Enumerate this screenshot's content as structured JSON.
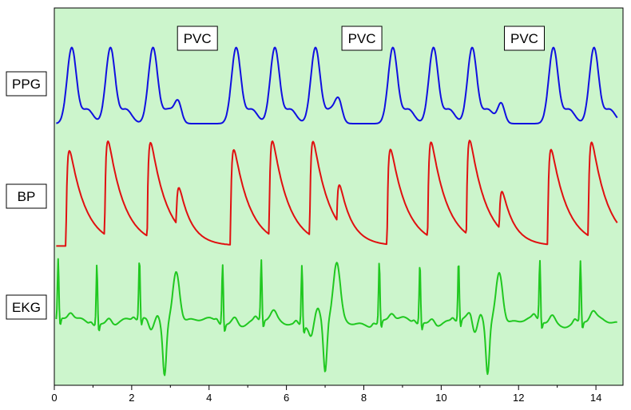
{
  "chart_data": {
    "type": "line",
    "title": "",
    "xlabel": "",
    "ylabel": "",
    "xlim": [
      0,
      14.7
    ],
    "x_ticks": [
      0,
      2,
      4,
      6,
      8,
      10,
      12,
      14
    ],
    "x_tick_labels": [
      "0",
      "2",
      "4",
      "6",
      "8",
      "10",
      "12",
      "14"
    ],
    "y_ticks_visible": false,
    "grid": false,
    "background_color": "#ccf5cc",
    "beat_times_normal": [
      0.1,
      1.1,
      2.2,
      4.35,
      5.35,
      6.4,
      8.4,
      9.45,
      10.45,
      12.55,
      13.6
    ],
    "pvc_times": [
      2.85,
      7.0,
      11.2
    ],
    "annotations": [
      {
        "text": "PVC",
        "x": 3.7
      },
      {
        "text": "PVC",
        "x": 7.95
      },
      {
        "text": "PVC",
        "x": 12.15
      }
    ],
    "series": [
      {
        "name": "PPG",
        "color": "#1010e0",
        "baseline": 0.05,
        "normal_peak": 1.0,
        "pvc_peak": 0.28,
        "ylim": [
          -0.1,
          1.3
        ]
      },
      {
        "name": "BP",
        "color": "#e01010",
        "baseline": 0.05,
        "normal_peak": 1.0,
        "pvc_peak": 0.45,
        "ylim": [
          -0.1,
          1.15
        ]
      },
      {
        "name": "EKG",
        "color": "#20c820",
        "baseline": 0.0,
        "r_peak": 1.0,
        "pvc_up": 0.9,
        "pvc_down": -0.85,
        "ylim": [
          -1.0,
          1.1
        ]
      }
    ]
  }
}
